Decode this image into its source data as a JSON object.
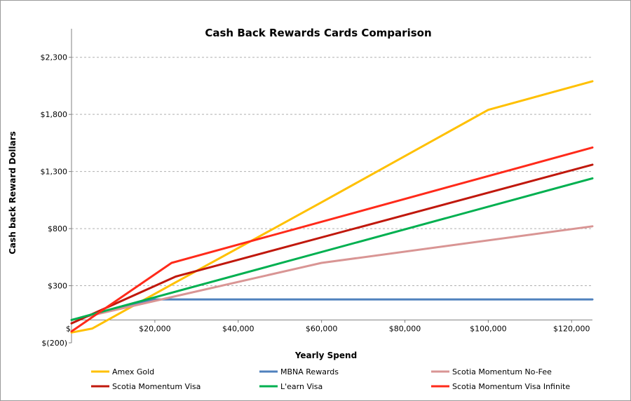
{
  "chart_data": {
    "type": "line",
    "title": "Cash Back Rewards Cards Comparison",
    "xlabel": "Yearly Spend",
    "ylabel": "Cash back Reward Dollars",
    "xlim": [
      0,
      125000
    ],
    "ylim": [
      -200,
      2550
    ],
    "x_ticks": [
      {
        "value": 0,
        "label": "$"
      },
      {
        "value": 20000,
        "label": "$20,000"
      },
      {
        "value": 40000,
        "label": "$40,000"
      },
      {
        "value": 60000,
        "label": "$60,000"
      },
      {
        "value": 80000,
        "label": "$80,000"
      },
      {
        "value": 100000,
        "label": "$100,000"
      },
      {
        "value": 120000,
        "label": "$120,000"
      }
    ],
    "y_ticks": [
      {
        "value": -200,
        "label": "$(200)"
      },
      {
        "value": 300,
        "label": "$300"
      },
      {
        "value": 800,
        "label": "$800"
      },
      {
        "value": 1300,
        "label": "$1,300"
      },
      {
        "value": 1800,
        "label": "$1,800"
      },
      {
        "value": 2300,
        "label": "$2,300"
      }
    ],
    "grid": "horizontal",
    "legend_position": "bottom",
    "series": [
      {
        "name": "Amex Gold",
        "color": "#FFC000",
        "points": [
          [
            0,
            -110
          ],
          [
            5000,
            -75
          ],
          [
            25000,
            330
          ],
          [
            60000,
            1030
          ],
          [
            100000,
            1840
          ],
          [
            125000,
            2090
          ]
        ]
      },
      {
        "name": "MBNA Rewards",
        "color": "#4F81BD",
        "points": [
          [
            0,
            0
          ],
          [
            20000,
            180
          ],
          [
            125000,
            180
          ]
        ]
      },
      {
        "name": "Scotia Momentum No-Fee",
        "color": "#D99594",
        "points": [
          [
            0,
            0
          ],
          [
            60000,
            500
          ],
          [
            125000,
            820
          ]
        ]
      },
      {
        "name": "Scotia Momentum Visa",
        "color": "#C0180C",
        "points": [
          [
            0,
            -30
          ],
          [
            25000,
            380
          ],
          [
            125000,
            1360
          ]
        ]
      },
      {
        "name": "L'earn Visa",
        "color": "#00B050",
        "points": [
          [
            0,
            0
          ],
          [
            125000,
            1240
          ]
        ]
      },
      {
        "name": "Scotia Momentum Visa Infinite",
        "color": "#FF2A1A",
        "points": [
          [
            0,
            -100
          ],
          [
            24000,
            500
          ],
          [
            125000,
            1510
          ]
        ]
      }
    ]
  }
}
